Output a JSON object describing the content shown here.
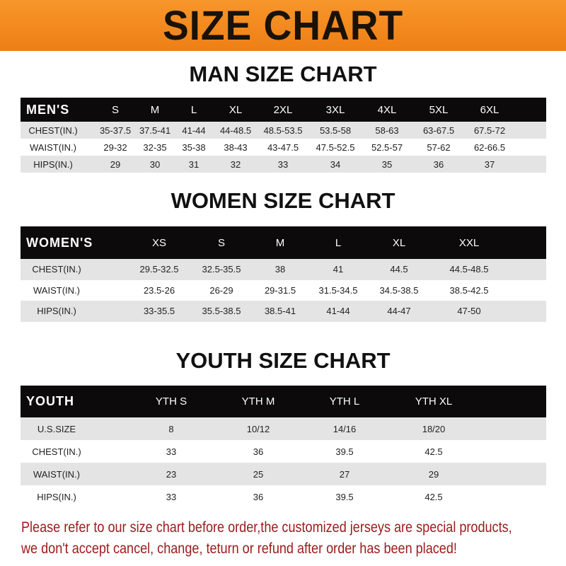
{
  "banner": "SIZE CHART",
  "men": {
    "title": "MAN SIZE CHART",
    "header": "MEN'S",
    "sizes": [
      "S",
      "M",
      "L",
      "XL",
      "2XL",
      "3XL",
      "4XL",
      "5XL",
      "6XL"
    ],
    "rows": [
      {
        "label": "CHEST(IN.)",
        "values": [
          "35-37.5",
          "37.5-41",
          "41-44",
          "44-48.5",
          "48.5-53.5",
          "53.5-58",
          "58-63",
          "63-67.5",
          "67.5-72"
        ]
      },
      {
        "label": "WAIST(IN.)",
        "values": [
          "29-32",
          "32-35",
          "35-38",
          "38-43",
          "43-47.5",
          "47.5-52.5",
          "52.5-57",
          "57-62",
          "62-66.5"
        ]
      },
      {
        "label": "HIPS(IN.)",
        "values": [
          "29",
          "30",
          "31",
          "32",
          "33",
          "34",
          "35",
          "36",
          "37"
        ]
      }
    ]
  },
  "women": {
    "title": "WOMEN SIZE CHART",
    "header": "WOMEN'S",
    "sizes": [
      "XS",
      "S",
      "M",
      "L",
      "XL",
      "XXL"
    ],
    "rows": [
      {
        "label": "CHEST(IN.)",
        "values": [
          "29.5-32.5",
          "32.5-35.5",
          "38",
          "41",
          "44.5",
          "44.5-48.5"
        ]
      },
      {
        "label": "WAIST(IN.)",
        "values": [
          "23.5-26",
          "26-29",
          "29-31.5",
          "31.5-34.5",
          "34.5-38.5",
          "38.5-42.5"
        ]
      },
      {
        "label": "HIPS(IN.)",
        "values": [
          "33-35.5",
          "35.5-38.5",
          "38.5-41",
          "41-44",
          "44-47",
          "47-50"
        ]
      }
    ]
  },
  "youth": {
    "title": "YOUTH SIZE CHART",
    "header": "YOUTH",
    "sizes": [
      "YTH S",
      "YTH M",
      "YTH L",
      "YTH XL"
    ],
    "rows": [
      {
        "label": "U.S.SIZE",
        "values": [
          "8",
          "10/12",
          "14/16",
          "18/20"
        ]
      },
      {
        "label": "CHEST(IN.)",
        "values": [
          "33",
          "36",
          "39.5",
          "42.5"
        ]
      },
      {
        "label": "WAIST(IN.)",
        "values": [
          "23",
          "25",
          "27",
          "29"
        ]
      },
      {
        "label": "HIPS(IN.)",
        "values": [
          "33",
          "36",
          "39.5",
          "42.5"
        ]
      }
    ]
  },
  "note": {
    "line1": "Please refer to our size chart before order,the customized jerseys are special products,",
    "line2": "we don't accept cancel, change, teturn or refund after order has been placed!"
  },
  "colors": {
    "banner": "#f08a1e",
    "header_row": "#0c0a0a",
    "stripe": "#e4e4e4",
    "note": "#9c1a1a"
  }
}
